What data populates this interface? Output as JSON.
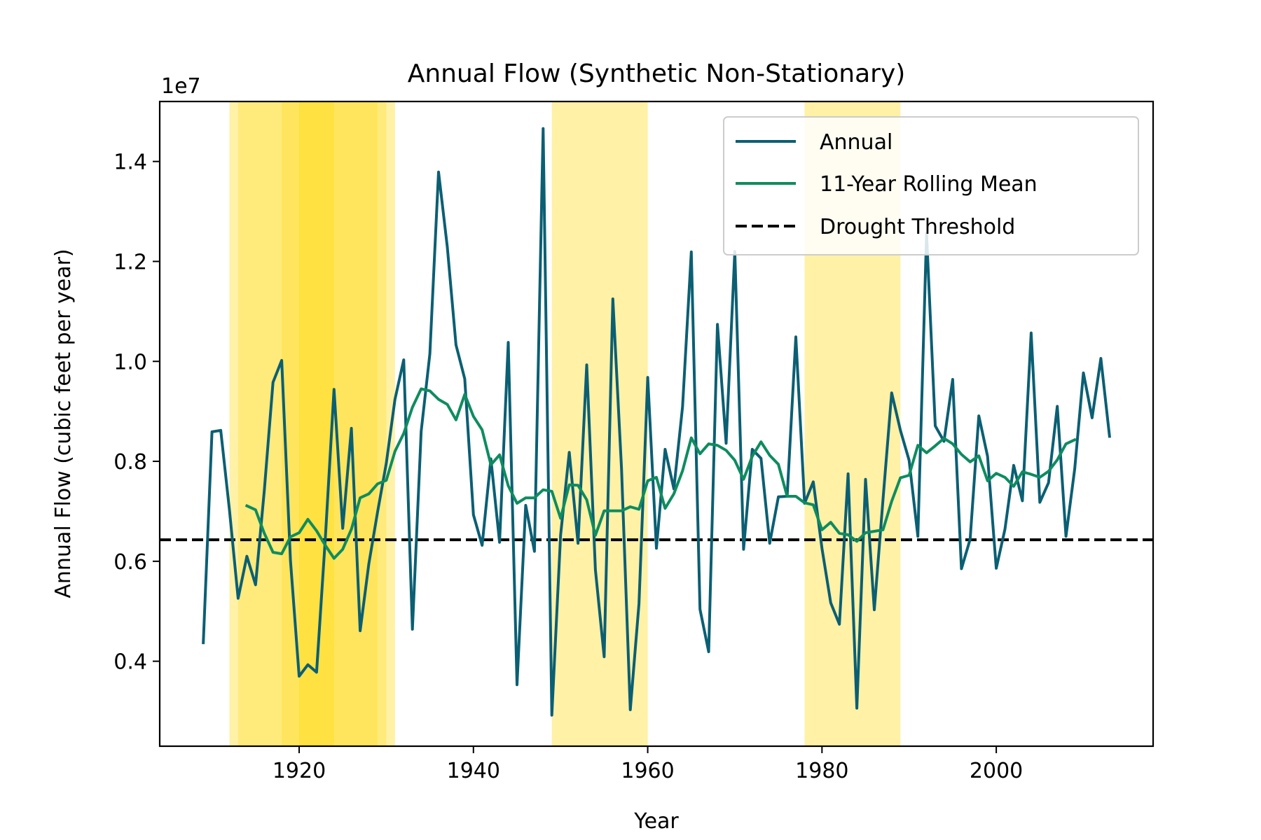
{
  "chart_data": {
    "type": "line",
    "title": "Annual Flow (Synthetic Non-Stationary)",
    "xlabel": "Year",
    "ylabel": "Annual Flow (cubic feet per year)",
    "y_offset_label": "1e7",
    "y_scale": 10000000,
    "xlim": [
      1904,
      2018
    ],
    "ylim": [
      2300000,
      15200000
    ],
    "xticks": [
      1920,
      1940,
      1960,
      1980,
      2000
    ],
    "xtick_labels": [
      "1920",
      "1940",
      "1960",
      "1980",
      "2000"
    ],
    "yticks": [
      4000000,
      6000000,
      8000000,
      10000000,
      12000000,
      14000000
    ],
    "ytick_labels": [
      "0.4",
      "0.6",
      "0.8",
      "1.0",
      "1.2",
      "1.4"
    ],
    "grid": false,
    "legend_position": "upper right",
    "drought_threshold": 6430000,
    "drought_periods": [
      {
        "start": 1912,
        "end": 1931,
        "opacity": 0.35
      },
      {
        "start": 1913,
        "end": 1930,
        "opacity": 0.25
      },
      {
        "start": 1918,
        "end": 1929,
        "opacity": 0.25
      },
      {
        "start": 1920,
        "end": 1924,
        "opacity": 0.3
      },
      {
        "start": 1949,
        "end": 1960,
        "opacity": 0.35
      },
      {
        "start": 1978,
        "end": 1989,
        "opacity": 0.35
      }
    ],
    "series": [
      {
        "name": "Annual",
        "color": "#0b5f73",
        "x_start": 1909,
        "values": [
          4370000,
          8590000,
          8620000,
          7030000,
          5260000,
          6100000,
          5530000,
          7420000,
          9580000,
          10020000,
          6020000,
          3700000,
          3930000,
          3780000,
          6440000,
          9440000,
          6660000,
          8660000,
          4610000,
          5950000,
          6990000,
          7960000,
          9240000,
          10030000,
          4640000,
          8600000,
          10150000,
          13790000,
          12290000,
          10330000,
          9650000,
          6930000,
          6320000,
          8050000,
          6380000,
          10380000,
          3530000,
          7120000,
          6200000,
          14660000,
          2920000,
          6520000,
          8180000,
          6360000,
          9930000,
          5830000,
          4090000,
          11250000,
          7850000,
          3030000,
          5150000,
          9680000,
          6260000,
          8240000,
          7450000,
          9090000,
          12190000,
          5040000,
          4190000,
          10740000,
          8360000,
          12200000,
          6240000,
          8240000,
          8060000,
          6360000,
          7290000,
          7300000,
          10490000,
          7160000,
          7590000,
          6260000,
          5170000,
          4740000,
          7750000,
          3060000,
          7640000,
          5030000,
          7230000,
          9370000,
          8620000,
          8020000,
          6500000,
          12560000,
          8710000,
          8400000,
          9640000,
          5850000,
          6440000,
          8910000,
          8100000,
          5860000,
          6640000,
          7920000,
          7210000,
          10570000,
          7180000,
          7570000,
          9100000,
          6500000,
          7850000,
          9770000,
          8870000,
          10060000,
          8500000
        ]
      },
      {
        "name": "11-Year Rolling Mean",
        "color": "#0e8c5f",
        "x_start": 1914,
        "values": [
          7110000,
          7030000,
          6560000,
          6180000,
          6150000,
          6490000,
          6570000,
          6840000,
          6610000,
          6320000,
          6060000,
          6240000,
          6640000,
          7270000,
          7350000,
          7550000,
          7620000,
          8200000,
          8560000,
          9080000,
          9450000,
          9410000,
          9240000,
          9140000,
          8830000,
          9340000,
          8900000,
          8630000,
          7930000,
          8130000,
          7510000,
          7160000,
          7270000,
          7270000,
          7430000,
          7400000,
          6860000,
          7530000,
          7520000,
          7230000,
          6520000,
          7010000,
          7010000,
          7010000,
          7090000,
          7040000,
          7610000,
          7680000,
          7060000,
          7350000,
          7810000,
          8470000,
          8150000,
          8350000,
          8320000,
          8220000,
          8020000,
          7640000,
          8100000,
          8390000,
          8120000,
          7940000,
          7300000,
          7300000,
          7170000,
          7130000,
          6630000,
          6780000,
          6560000,
          6530000,
          6400000,
          6570000,
          6600000,
          6630000,
          7200000,
          7670000,
          7720000,
          8320000,
          8170000,
          8310000,
          8460000,
          8350000,
          8140000,
          7990000,
          8110000,
          7610000,
          7760000,
          7680000,
          7500000,
          7790000,
          7740000,
          7680000,
          7800000,
          8030000,
          8350000,
          8430000
        ]
      },
      {
        "name": "Drought Threshold",
        "color": "#000000",
        "style": "dashed"
      }
    ]
  }
}
